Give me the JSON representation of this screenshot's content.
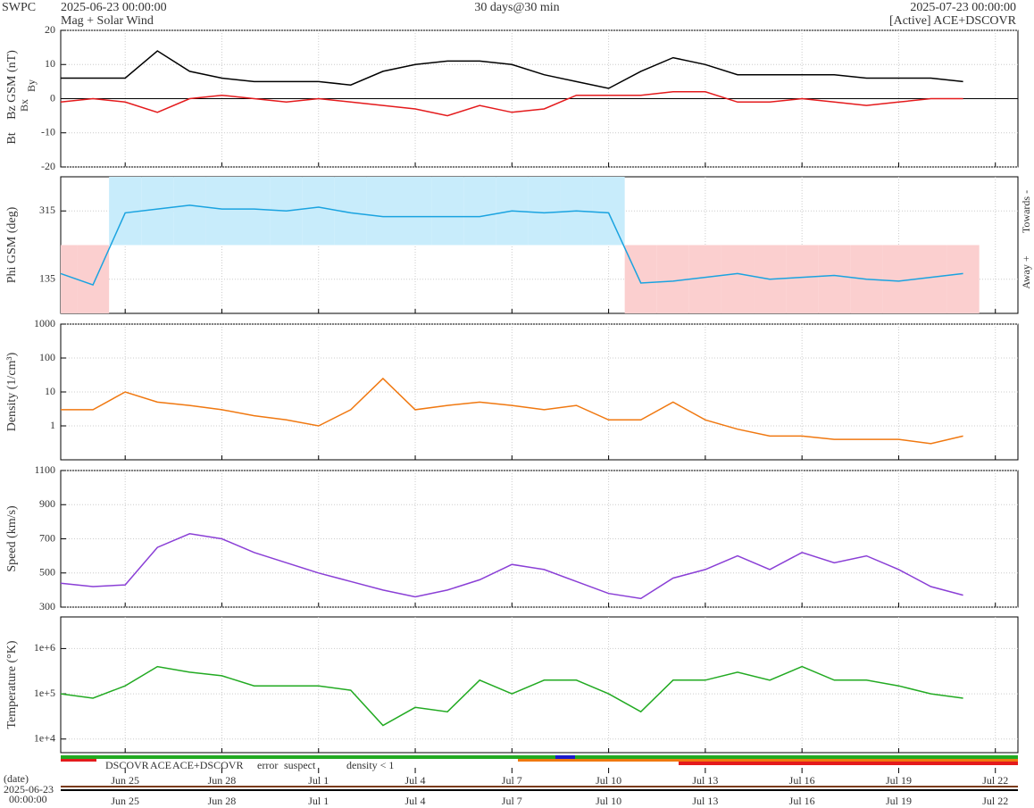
{
  "header": {
    "source": "SWPC",
    "start": "2025-06-23 00:00:00",
    "product": "Mag + Solar Wind",
    "span": "30 days@30 min",
    "end": "2025-07-23 00:00:00",
    "spacecraft": "[Active] ACE+DSCOVR"
  },
  "chart_data": [
    {
      "type": "line",
      "ylim": [
        -20,
        20
      ],
      "yticks": [
        -20,
        -10,
        0,
        10,
        20
      ],
      "x": [
        0,
        1,
        2,
        3,
        4,
        5,
        6,
        7,
        8,
        9,
        10,
        11,
        12,
        13,
        14,
        15,
        16,
        17,
        18,
        19,
        20,
        21,
        22,
        23,
        24,
        25,
        26,
        27,
        28
      ],
      "series": [
        {
          "name": "Bt",
          "color": "#000000",
          "values": [
            6,
            6,
            6,
            14,
            8,
            6,
            5,
            5,
            5,
            4,
            8,
            10,
            11,
            11,
            10,
            7,
            5,
            3,
            8,
            12,
            10,
            7,
            7,
            7,
            7,
            6,
            6,
            6,
            5
          ]
        },
        {
          "name": "Bz GSM (nT)",
          "color": "#e41a1c",
          "values": [
            -1,
            0,
            -1,
            -4,
            0,
            1,
            0,
            -1,
            0,
            -1,
            -2,
            -3,
            -5,
            -2,
            -4,
            -3,
            1,
            1,
            1,
            2,
            2,
            -1,
            -1,
            0,
            -1,
            -2,
            -1,
            0,
            0
          ]
        }
      ],
      "annotations": [
        {
          "text": "Bx",
          "color": "#8a3fd6"
        },
        {
          "text": "By",
          "color": "#1aa3e0"
        }
      ]
    },
    {
      "type": "line",
      "ylim": [
        45,
        405
      ],
      "yticks": [
        135,
        315
      ],
      "x": [
        0,
        1,
        2,
        3,
        4,
        5,
        6,
        7,
        8,
        9,
        10,
        11,
        12,
        13,
        14,
        15,
        16,
        17,
        18,
        19,
        20,
        21,
        22,
        23,
        24,
        25,
        26,
        27,
        28
      ],
      "series": [
        {
          "name": "Phi GSM (deg)",
          "color": "#1aa3e0",
          "values": [
            150,
            120,
            310,
            320,
            330,
            320,
            320,
            315,
            325,
            310,
            300,
            300,
            300,
            300,
            315,
            310,
            315,
            310,
            125,
            130,
            140,
            150,
            135,
            140,
            145,
            135,
            130,
            140,
            150
          ]
        }
      ],
      "right_labels": [
        "Towards -",
        "Away +"
      ],
      "shading": {
        "above": "#c8ecfb",
        "below": "#fbcfcf"
      }
    },
    {
      "type": "line",
      "log": true,
      "ylim": [
        0.1,
        1000
      ],
      "yticks": [
        1,
        10,
        100,
        1000
      ],
      "x": [
        0,
        1,
        2,
        3,
        4,
        5,
        6,
        7,
        8,
        9,
        10,
        11,
        12,
        13,
        14,
        15,
        16,
        17,
        18,
        19,
        20,
        21,
        22,
        23,
        24,
        25,
        26,
        27,
        28
      ],
      "series": [
        {
          "name": "Density (1/cm³)",
          "color": "#f07810",
          "values": [
            3,
            3,
            10,
            5,
            4,
            3,
            2,
            1.5,
            1,
            3,
            25,
            3,
            4,
            5,
            4,
            3,
            4,
            1.5,
            1.5,
            5,
            1.5,
            0.8,
            0.5,
            0.5,
            0.4,
            0.4,
            0.4,
            0.3,
            0.5
          ]
        }
      ]
    },
    {
      "type": "line",
      "ylim": [
        300,
        1100
      ],
      "yticks": [
        300,
        500,
        700,
        900,
        1100
      ],
      "x": [
        0,
        1,
        2,
        3,
        4,
        5,
        6,
        7,
        8,
        9,
        10,
        11,
        12,
        13,
        14,
        15,
        16,
        17,
        18,
        19,
        20,
        21,
        22,
        23,
        24,
        25,
        26,
        27,
        28
      ],
      "series": [
        {
          "name": "Speed (km/s)",
          "color": "#8a3fd6",
          "values": [
            440,
            420,
            430,
            650,
            730,
            700,
            620,
            560,
            500,
            450,
            400,
            360,
            400,
            460,
            550,
            520,
            450,
            380,
            350,
            470,
            520,
            600,
            520,
            620,
            560,
            600,
            520,
            420,
            370
          ]
        }
      ]
    },
    {
      "type": "line",
      "log": true,
      "ylim": [
        5000,
        5000000
      ],
      "yticks": [
        {
          "value": 10000,
          "label": "1e+4"
        },
        {
          "value": 100000,
          "label": "1e+5"
        },
        {
          "value": 1000000,
          "label": "1e+6"
        }
      ],
      "x": [
        0,
        1,
        2,
        3,
        4,
        5,
        6,
        7,
        8,
        9,
        10,
        11,
        12,
        13,
        14,
        15,
        16,
        17,
        18,
        19,
        20,
        21,
        22,
        23,
        24,
        25,
        26,
        27,
        28
      ],
      "series": [
        {
          "name": "Temperature (°K)",
          "color": "#22aa22",
          "values": [
            100000,
            80000,
            150000,
            400000,
            300000,
            250000,
            150000,
            150000,
            150000,
            120000,
            20000,
            50000,
            40000,
            200000,
            100000,
            200000,
            200000,
            100000,
            40000,
            200000,
            200000,
            300000,
            200000,
            400000,
            200000,
            200000,
            150000,
            100000,
            80000
          ]
        }
      ]
    }
  ],
  "status_legend": [
    {
      "text": "DSCOVR",
      "color": "#1a1acc"
    },
    {
      "text": "ACE",
      "color": "#22aa22"
    },
    {
      "text": "ACE+DSCOVR",
      "color": "#e020c0"
    },
    {
      "text": "error",
      "color": "#e41a1c"
    },
    {
      "text": "suspect",
      "color": "#f0b000"
    },
    {
      "text": "density < 1",
      "color": "#f07810"
    }
  ],
  "date_axis": {
    "label": "(date)",
    "start_date": "2025-06-23",
    "start_time": "00:00:00",
    "xlim": [
      0,
      29.7
    ],
    "xticks": [
      {
        "value": 2,
        "label": "Jun 25"
      },
      {
        "value": 5,
        "label": "Jun 28"
      },
      {
        "value": 8,
        "label": "Jul 1"
      },
      {
        "value": 11,
        "label": "Jul 4"
      },
      {
        "value": 14,
        "label": "Jul 7"
      },
      {
        "value": 17,
        "label": "Jul 10"
      },
      {
        "value": 20,
        "label": "Jul 13"
      },
      {
        "value": 23,
        "label": "Jul 16"
      },
      {
        "value": 26,
        "label": "Jul 19"
      },
      {
        "value": 29,
        "label": "Jul 22"
      }
    ]
  }
}
